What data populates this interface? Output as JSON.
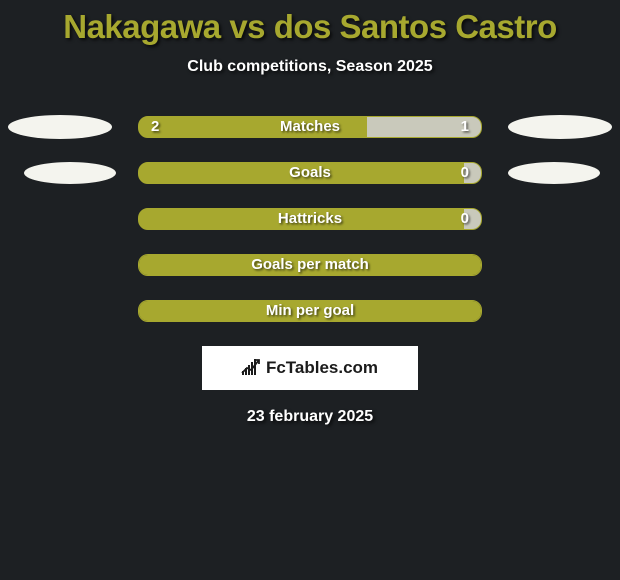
{
  "header": {
    "title": "Nakagawa vs dos Santos Castro",
    "subtitle": "Club competitions, Season 2025"
  },
  "colors": {
    "background": "#1d2023",
    "accent": "#a7a82f",
    "bar_right": "#c9c9bb",
    "avatar": "#f4f4ee",
    "text": "#ffffff",
    "logo_bg": "#ffffff",
    "logo_fg": "#1b1b1b"
  },
  "stats": [
    {
      "label": "Matches",
      "left_value": "2",
      "right_value": "1",
      "left_pct": 66.7,
      "right_pct": 33.3,
      "show_right_bar": true,
      "show_left_avatar": true,
      "show_right_avatar": true,
      "avatar_size": "big"
    },
    {
      "label": "Goals",
      "left_value": "",
      "right_value": "0",
      "left_pct": 95,
      "right_pct": 5,
      "show_right_bar": true,
      "show_left_avatar": true,
      "show_right_avatar": true,
      "avatar_size": "small"
    },
    {
      "label": "Hattricks",
      "left_value": "",
      "right_value": "0",
      "left_pct": 95,
      "right_pct": 5,
      "show_right_bar": true,
      "show_left_avatar": false,
      "show_right_avatar": false,
      "avatar_size": "small"
    },
    {
      "label": "Goals per match",
      "left_value": "",
      "right_value": "",
      "left_pct": 100,
      "right_pct": 0,
      "show_right_bar": false,
      "show_left_avatar": false,
      "show_right_avatar": false,
      "avatar_size": "small"
    },
    {
      "label": "Min per goal",
      "left_value": "",
      "right_value": "",
      "left_pct": 100,
      "right_pct": 0,
      "show_right_bar": false,
      "show_left_avatar": false,
      "show_right_avatar": false,
      "avatar_size": "small"
    }
  ],
  "logo": {
    "text_prefix": "Fc",
    "text_suffix": "Tables.com",
    "bar_heights": [
      4,
      7,
      10,
      13,
      16
    ]
  },
  "footer": {
    "date": "23 february 2025"
  }
}
